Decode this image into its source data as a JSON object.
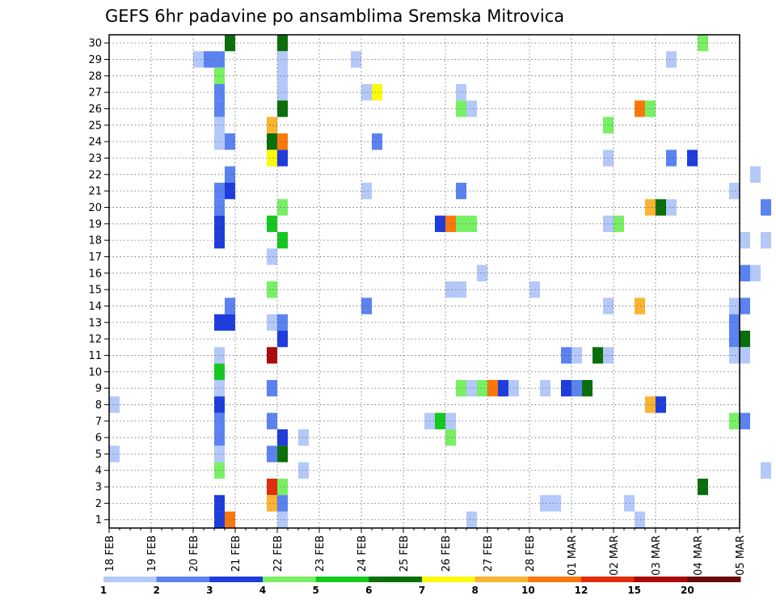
{
  "chart_data": {
    "type": "heatmap",
    "title": "GEFS 6hr padavine po ansamblima Sremska Mitrovica",
    "xlabel": "",
    "ylabel": "",
    "x_ticks": [
      "18 FEB",
      "19 FEB",
      "20 FEB",
      "21 FEB",
      "22 FEB",
      "23 FEB",
      "24 FEB",
      "25 FEB",
      "26 FEB",
      "27 FEB",
      "28 FEB",
      "01 MAR",
      "02 MAR",
      "03 MAR",
      "04 MAR",
      "05 MAR"
    ],
    "y_ticks": [
      "1",
      "2",
      "3",
      "4",
      "5",
      "6",
      "7",
      "8",
      "9",
      "10",
      "11",
      "12",
      "13",
      "14",
      "15",
      "16",
      "17",
      "18",
      "19",
      "20",
      "21",
      "22",
      "23",
      "24",
      "25",
      "26",
      "27",
      "28",
      "29",
      "30"
    ],
    "x_range_days_from_18feb": [
      0,
      15
    ],
    "y_range": [
      0,
      30
    ],
    "grid": true,
    "colorbar": {
      "labels": [
        "1",
        "2",
        "3",
        "4",
        "5",
        "6",
        "7",
        "8",
        "10",
        "12",
        "15",
        "20"
      ],
      "colors": [
        "#b4c8fa",
        "#5a82f0",
        "#1e3cdc",
        "#78f064",
        "#14c81e",
        "#0a6e0a",
        "#fafa0a",
        "#fab432",
        "#fa780a",
        "#e12d0a",
        "#aa0a0a",
        "#6e0a0a"
      ]
    },
    "cell_columns_6hr": "column index k = 6-hour step since 18 FEB 00z",
    "cells": [
      {
        "m": 30,
        "k": 11,
        "c": 6
      },
      {
        "m": 30,
        "k": 16,
        "c": 6
      },
      {
        "m": 30,
        "k": 56,
        "c": 4
      },
      {
        "m": 29,
        "k": 8,
        "c": 1
      },
      {
        "m": 29,
        "k": 9,
        "c": 2
      },
      {
        "m": 29,
        "k": 10,
        "c": 2
      },
      {
        "m": 29,
        "k": 16,
        "c": 1
      },
      {
        "m": 29,
        "k": 23,
        "c": 1
      },
      {
        "m": 29,
        "k": 53,
        "c": 1
      },
      {
        "m": 28,
        "k": 10,
        "c": 4
      },
      {
        "m": 28,
        "k": 16,
        "c": 1
      },
      {
        "m": 27,
        "k": 10,
        "c": 2
      },
      {
        "m": 27,
        "k": 16,
        "c": 1
      },
      {
        "m": 27,
        "k": 24,
        "c": 1
      },
      {
        "m": 27,
        "k": 25,
        "c": 7
      },
      {
        "m": 27,
        "k": 33,
        "c": 1
      },
      {
        "m": 26,
        "k": 10,
        "c": 2
      },
      {
        "m": 26,
        "k": 16,
        "c": 6
      },
      {
        "m": 26,
        "k": 33,
        "c": 4
      },
      {
        "m": 26,
        "k": 34,
        "c": 1
      },
      {
        "m": 26,
        "k": 50,
        "c": 9
      },
      {
        "m": 26,
        "k": 51,
        "c": 4
      },
      {
        "m": 25,
        "k": 10,
        "c": 1
      },
      {
        "m": 25,
        "k": 15,
        "c": 8
      },
      {
        "m": 25,
        "k": 47,
        "c": 4
      },
      {
        "m": 24,
        "k": 10,
        "c": 1
      },
      {
        "m": 24,
        "k": 11,
        "c": 2
      },
      {
        "m": 24,
        "k": 15,
        "c": 6
      },
      {
        "m": 24,
        "k": 16,
        "c": 9
      },
      {
        "m": 24,
        "k": 25,
        "c": 2
      },
      {
        "m": 23,
        "k": 15,
        "c": 7
      },
      {
        "m": 23,
        "k": 16,
        "c": 3
      },
      {
        "m": 23,
        "k": 47,
        "c": 1
      },
      {
        "m": 23,
        "k": 53,
        "c": 2
      },
      {
        "m": 23,
        "k": 55,
        "c": 3
      },
      {
        "m": 22,
        "k": 11,
        "c": 2
      },
      {
        "m": 22,
        "k": 61,
        "c": 1
      },
      {
        "m": 21,
        "k": 10,
        "c": 2
      },
      {
        "m": 21,
        "k": 11,
        "c": 3
      },
      {
        "m": 21,
        "k": 24,
        "c": 1
      },
      {
        "m": 21,
        "k": 33,
        "c": 2
      },
      {
        "m": 21,
        "k": 59,
        "c": 1
      },
      {
        "m": 20,
        "k": 10,
        "c": 2
      },
      {
        "m": 20,
        "k": 16,
        "c": 4
      },
      {
        "m": 20,
        "k": 51,
        "c": 8
      },
      {
        "m": 20,
        "k": 52,
        "c": 6
      },
      {
        "m": 20,
        "k": 53,
        "c": 1
      },
      {
        "m": 20,
        "k": 62,
        "c": 2
      },
      {
        "m": 19,
        "k": 10,
        "c": 3
      },
      {
        "m": 19,
        "k": 15,
        "c": 5
      },
      {
        "m": 19,
        "k": 31,
        "c": 3
      },
      {
        "m": 19,
        "k": 32,
        "c": 9
      },
      {
        "m": 19,
        "k": 33,
        "c": 4
      },
      {
        "m": 19,
        "k": 34,
        "c": 4
      },
      {
        "m": 19,
        "k": 47,
        "c": 1
      },
      {
        "m": 19,
        "k": 48,
        "c": 4
      },
      {
        "m": 18,
        "k": 10,
        "c": 3
      },
      {
        "m": 18,
        "k": 16,
        "c": 5
      },
      {
        "m": 18,
        "k": 60,
        "c": 1
      },
      {
        "m": 18,
        "k": 62,
        "c": 1
      },
      {
        "m": 17,
        "k": 15,
        "c": 1
      },
      {
        "m": 16,
        "k": 35,
        "c": 1
      },
      {
        "m": 16,
        "k": 60,
        "c": 2
      },
      {
        "m": 16,
        "k": 61,
        "c": 1
      },
      {
        "m": 15,
        "k": 15,
        "c": 4
      },
      {
        "m": 15,
        "k": 32,
        "c": 1
      },
      {
        "m": 15,
        "k": 33,
        "c": 1
      },
      {
        "m": 15,
        "k": 40,
        "c": 1
      },
      {
        "m": 14,
        "k": 11,
        "c": 2
      },
      {
        "m": 14,
        "k": 24,
        "c": 2
      },
      {
        "m": 14,
        "k": 47,
        "c": 1
      },
      {
        "m": 14,
        "k": 50,
        "c": 8
      },
      {
        "m": 14,
        "k": 59,
        "c": 1
      },
      {
        "m": 14,
        "k": 60,
        "c": 2
      },
      {
        "m": 13,
        "k": 10,
        "c": 3
      },
      {
        "m": 13,
        "k": 11,
        "c": 3
      },
      {
        "m": 13,
        "k": 15,
        "c": 1
      },
      {
        "m": 13,
        "k": 16,
        "c": 2
      },
      {
        "m": 13,
        "k": 59,
        "c": 2
      },
      {
        "m": 12,
        "k": 16,
        "c": 3
      },
      {
        "m": 12,
        "k": 59,
        "c": 2
      },
      {
        "m": 12,
        "k": 60,
        "c": 6
      },
      {
        "m": 11,
        "k": 10,
        "c": 1
      },
      {
        "m": 11,
        "k": 15,
        "c": 11
      },
      {
        "m": 11,
        "k": 43,
        "c": 2
      },
      {
        "m": 11,
        "k": 44,
        "c": 1
      },
      {
        "m": 11,
        "k": 46,
        "c": 6
      },
      {
        "m": 11,
        "k": 47,
        "c": 1
      },
      {
        "m": 11,
        "k": 59,
        "c": 1
      },
      {
        "m": 11,
        "k": 60,
        "c": 1
      },
      {
        "m": 10,
        "k": 10,
        "c": 5
      },
      {
        "m": 9,
        "k": 10,
        "c": 1
      },
      {
        "m": 9,
        "k": 15,
        "c": 2
      },
      {
        "m": 9,
        "k": 33,
        "c": 4
      },
      {
        "m": 9,
        "k": 34,
        "c": 1
      },
      {
        "m": 9,
        "k": 35,
        "c": 4
      },
      {
        "m": 9,
        "k": 36,
        "c": 9
      },
      {
        "m": 9,
        "k": 37,
        "c": 3
      },
      {
        "m": 9,
        "k": 38,
        "c": 1
      },
      {
        "m": 9,
        "k": 41,
        "c": 1
      },
      {
        "m": 9,
        "k": 43,
        "c": 3
      },
      {
        "m": 9,
        "k": 44,
        "c": 2
      },
      {
        "m": 9,
        "k": 45,
        "c": 6
      },
      {
        "m": 8,
        "k": 0,
        "c": 1
      },
      {
        "m": 8,
        "k": 10,
        "c": 3
      },
      {
        "m": 8,
        "k": 51,
        "c": 8
      },
      {
        "m": 8,
        "k": 52,
        "c": 3
      },
      {
        "m": 7,
        "k": 10,
        "c": 2
      },
      {
        "m": 7,
        "k": 15,
        "c": 2
      },
      {
        "m": 7,
        "k": 30,
        "c": 1
      },
      {
        "m": 7,
        "k": 31,
        "c": 5
      },
      {
        "m": 7,
        "k": 32,
        "c": 1
      },
      {
        "m": 7,
        "k": 59,
        "c": 4
      },
      {
        "m": 7,
        "k": 60,
        "c": 2
      },
      {
        "m": 6,
        "k": 10,
        "c": 2
      },
      {
        "m": 6,
        "k": 16,
        "c": 3
      },
      {
        "m": 6,
        "k": 18,
        "c": 1
      },
      {
        "m": 6,
        "k": 32,
        "c": 4
      },
      {
        "m": 5,
        "k": 0,
        "c": 1
      },
      {
        "m": 5,
        "k": 10,
        "c": 1
      },
      {
        "m": 5,
        "k": 15,
        "c": 2
      },
      {
        "m": 5,
        "k": 16,
        "c": 6
      },
      {
        "m": 4,
        "k": 10,
        "c": 4
      },
      {
        "m": 4,
        "k": 18,
        "c": 1
      },
      {
        "m": 4,
        "k": 62,
        "c": 1
      },
      {
        "m": 3,
        "k": 15,
        "c": 10
      },
      {
        "m": 3,
        "k": 16,
        "c": 4
      },
      {
        "m": 3,
        "k": 56,
        "c": 6
      },
      {
        "m": 2,
        "k": 10,
        "c": 3
      },
      {
        "m": 2,
        "k": 15,
        "c": 8
      },
      {
        "m": 2,
        "k": 16,
        "c": 2
      },
      {
        "m": 2,
        "k": 41,
        "c": 1
      },
      {
        "m": 2,
        "k": 42,
        "c": 1
      },
      {
        "m": 2,
        "k": 49,
        "c": 1
      },
      {
        "m": 1,
        "k": 10,
        "c": 3
      },
      {
        "m": 1,
        "k": 11,
        "c": 9
      },
      {
        "m": 1,
        "k": 16,
        "c": 1
      },
      {
        "m": 1,
        "k": 34,
        "c": 1
      },
      {
        "m": 1,
        "k": 50,
        "c": 1
      }
    ]
  }
}
